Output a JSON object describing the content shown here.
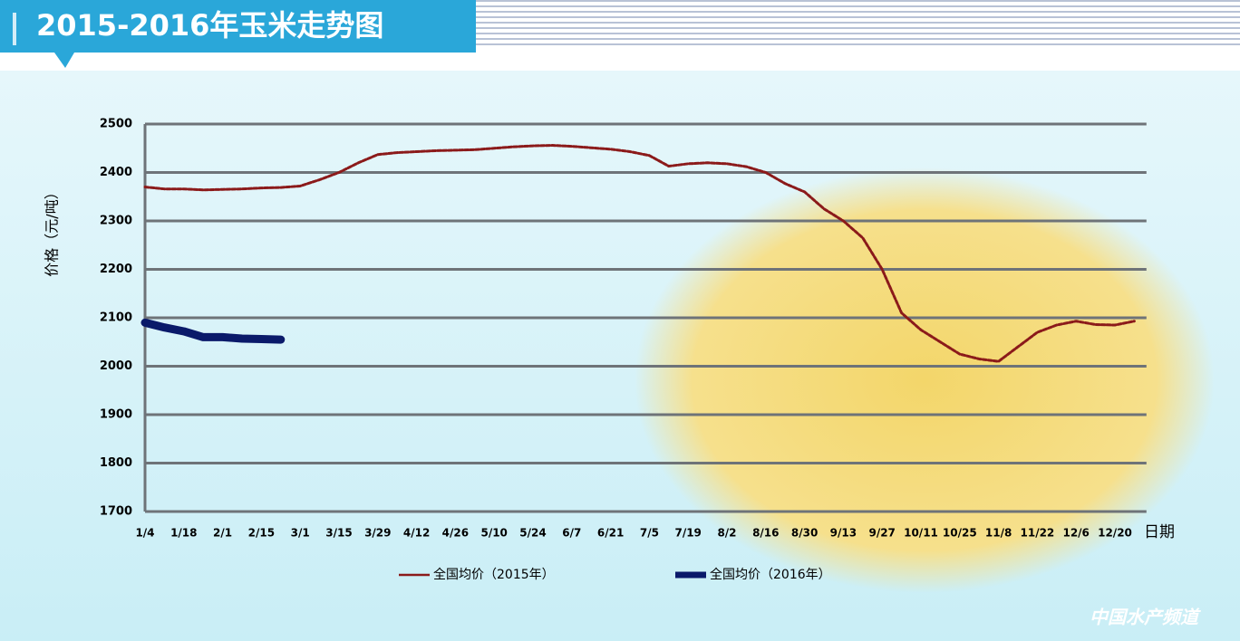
{
  "header": {
    "title": "2015-2016年玉米走势图"
  },
  "watermark": "中国水产频道",
  "chart_data": {
    "type": "line",
    "ylabel": "价格（元/吨）",
    "xlabel": "日期",
    "categories": [
      "1/4",
      null,
      "1/18",
      null,
      "2/1",
      null,
      "2/15",
      null,
      "3/1",
      null,
      "3/15",
      null,
      "3/29",
      null,
      "4/12",
      null,
      "4/26",
      null,
      "5/10",
      null,
      "5/24",
      null,
      "6/7",
      null,
      "6/21",
      null,
      "7/5",
      null,
      "7/19",
      null,
      "8/2",
      null,
      "8/16",
      null,
      "8/30",
      null,
      "9/13",
      null,
      "9/27",
      null,
      "10/11",
      null,
      "10/25",
      null,
      "11/8",
      null,
      "11/22",
      null,
      "12/6",
      null,
      "12/20",
      null
    ],
    "series": [
      {
        "name": "全国均价（2015年）",
        "color": "#8b1a1a",
        "values": [
          2370,
          2366,
          2366,
          2364,
          2365,
          2366,
          2368,
          2369,
          2372,
          2385,
          2400,
          2420,
          2437,
          2441,
          2443,
          2445,
          2446,
          2447,
          2450,
          2453,
          2455,
          2456,
          2454,
          2451,
          2448,
          2443,
          2435,
          2413,
          2418,
          2420,
          2418,
          2412,
          2400,
          2377,
          2360,
          2325,
          2300,
          2265,
          2200,
          2110,
          2075,
          2050,
          2025,
          2015,
          2010,
          2040,
          2070,
          2085,
          2093,
          2086,
          2085,
          2093
        ]
      },
      {
        "name": "全国均价（2016年）",
        "color": "#0a1a6a",
        "values": [
          2090,
          2080,
          2072,
          2060,
          2060,
          2057,
          2056,
          2055,
          null,
          null,
          null,
          null,
          null,
          null,
          null,
          null,
          null,
          null,
          null,
          null,
          null,
          null,
          null,
          null,
          null,
          null,
          null,
          null,
          null,
          null,
          null,
          null,
          null,
          null,
          null,
          null,
          null,
          null,
          null,
          null,
          null,
          null,
          null,
          null,
          null,
          null,
          null,
          null,
          null,
          null,
          null,
          null
        ]
      }
    ],
    "ylim": [
      1700,
      2500
    ],
    "yticks": [
      1700,
      1800,
      1900,
      2000,
      2100,
      2200,
      2300,
      2400,
      2500
    ],
    "grid": true
  }
}
